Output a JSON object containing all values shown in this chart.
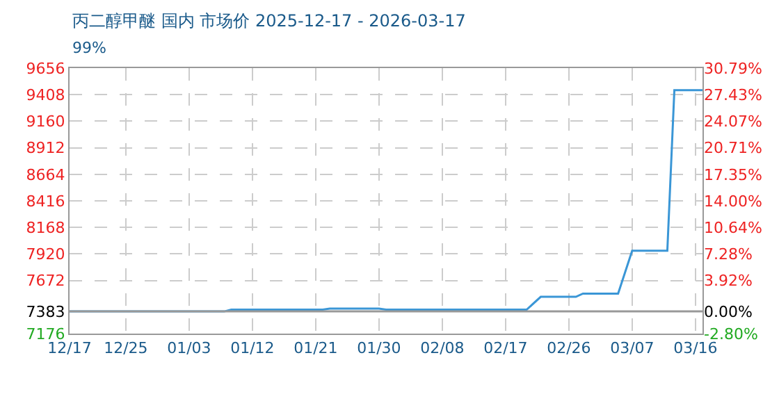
{
  "chart_data": {
    "type": "line",
    "title": "丙二醇甲醚 国内 市场价 2025-12-17 - 2026-03-17",
    "subtitle": "99%",
    "x": [
      "2025-12-17",
      "2026-01-08",
      "2026-01-09",
      "2026-01-22",
      "2026-01-23",
      "2026-01-30",
      "2026-01-31",
      "2026-02-20",
      "2026-02-22",
      "2026-02-27",
      "2026-02-28",
      "2026-03-05",
      "2026-03-07",
      "2026-03-12",
      "2026-03-13",
      "2026-03-17"
    ],
    "series": [
      {
        "color": "#3a96d6",
        "values": [
          7383,
          7383,
          7400,
          7400,
          7410,
          7410,
          7400,
          7400,
          7520,
          7520,
          7550,
          7550,
          7950,
          7950,
          9450,
          9450
        ]
      }
    ],
    "xlim": [
      "2025-12-17",
      "2026-03-17"
    ],
    "xticks": [
      {
        "value": "2025-12-17",
        "label": "12/17"
      },
      {
        "value": "2025-12-25",
        "label": "12/25"
      },
      {
        "value": "2026-01-03",
        "label": "01/03"
      },
      {
        "value": "2026-01-12",
        "label": "01/12"
      },
      {
        "value": "2026-01-21",
        "label": "01/21"
      },
      {
        "value": "2026-01-30",
        "label": "01/30"
      },
      {
        "value": "2026-02-08",
        "label": "02/08"
      },
      {
        "value": "2026-02-17",
        "label": "02/17"
      },
      {
        "value": "2026-02-26",
        "label": "02/26"
      },
      {
        "value": "2026-03-07",
        "label": "03/07"
      },
      {
        "value": "2026-03-16",
        "label": "03/16"
      }
    ],
    "ylim": [
      7176,
      9656
    ],
    "yticks": [
      7176,
      7383,
      7672,
      7920,
      8168,
      8416,
      8664,
      8912,
      9160,
      9408,
      9656
    ],
    "y2lim": [
      -2.8,
      30.79
    ],
    "y2ticks": [
      {
        "value": -2.8,
        "label": "-2.80%"
      },
      {
        "value": 0.0,
        "label": "0.00%"
      },
      {
        "value": 3.92,
        "label": "3.92%"
      },
      {
        "value": 7.28,
        "label": "7.28%"
      },
      {
        "value": 10.64,
        "label": "10.64%"
      },
      {
        "value": 14.0,
        "label": "14.00%"
      },
      {
        "value": 17.35,
        "label": "17.35%"
      },
      {
        "value": 20.71,
        "label": "20.71%"
      },
      {
        "value": 24.07,
        "label": "24.07%"
      },
      {
        "value": 27.43,
        "label": "27.43%"
      },
      {
        "value": 30.79,
        "label": "30.79%"
      }
    ],
    "ref_lines": [
      {
        "axis": "y",
        "value": 7383,
        "color": "#999999"
      }
    ],
    "grid": true,
    "legend": false,
    "marker": "none",
    "line_style": "solid"
  }
}
